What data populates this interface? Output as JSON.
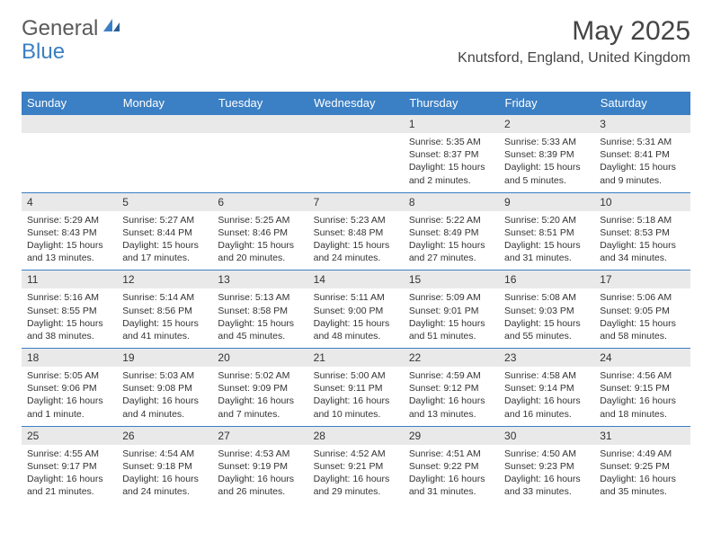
{
  "brand": {
    "part1": "General",
    "part2": "Blue"
  },
  "title": "May 2025",
  "location": "Knutsford, England, United Kingdom",
  "colors": {
    "header_bg": "#3b7fc4",
    "header_text": "#ffffff",
    "daynum_bg": "#e9e9e9",
    "border": "#3b7fc4",
    "text": "#333333"
  },
  "day_headers": [
    "Sunday",
    "Monday",
    "Tuesday",
    "Wednesday",
    "Thursday",
    "Friday",
    "Saturday"
  ],
  "weeks": [
    {
      "nums": [
        "",
        "",
        "",
        "",
        "1",
        "2",
        "3"
      ],
      "cells": [
        null,
        null,
        null,
        null,
        {
          "sunrise": "5:35 AM",
          "sunset": "8:37 PM",
          "daylight": "15 hours and 2 minutes."
        },
        {
          "sunrise": "5:33 AM",
          "sunset": "8:39 PM",
          "daylight": "15 hours and 5 minutes."
        },
        {
          "sunrise": "5:31 AM",
          "sunset": "8:41 PM",
          "daylight": "15 hours and 9 minutes."
        }
      ]
    },
    {
      "nums": [
        "4",
        "5",
        "6",
        "7",
        "8",
        "9",
        "10"
      ],
      "cells": [
        {
          "sunrise": "5:29 AM",
          "sunset": "8:43 PM",
          "daylight": "15 hours and 13 minutes."
        },
        {
          "sunrise": "5:27 AM",
          "sunset": "8:44 PM",
          "daylight": "15 hours and 17 minutes."
        },
        {
          "sunrise": "5:25 AM",
          "sunset": "8:46 PM",
          "daylight": "15 hours and 20 minutes."
        },
        {
          "sunrise": "5:23 AM",
          "sunset": "8:48 PM",
          "daylight": "15 hours and 24 minutes."
        },
        {
          "sunrise": "5:22 AM",
          "sunset": "8:49 PM",
          "daylight": "15 hours and 27 minutes."
        },
        {
          "sunrise": "5:20 AM",
          "sunset": "8:51 PM",
          "daylight": "15 hours and 31 minutes."
        },
        {
          "sunrise": "5:18 AM",
          "sunset": "8:53 PM",
          "daylight": "15 hours and 34 minutes."
        }
      ]
    },
    {
      "nums": [
        "11",
        "12",
        "13",
        "14",
        "15",
        "16",
        "17"
      ],
      "cells": [
        {
          "sunrise": "5:16 AM",
          "sunset": "8:55 PM",
          "daylight": "15 hours and 38 minutes."
        },
        {
          "sunrise": "5:14 AM",
          "sunset": "8:56 PM",
          "daylight": "15 hours and 41 minutes."
        },
        {
          "sunrise": "5:13 AM",
          "sunset": "8:58 PM",
          "daylight": "15 hours and 45 minutes."
        },
        {
          "sunrise": "5:11 AM",
          "sunset": "9:00 PM",
          "daylight": "15 hours and 48 minutes."
        },
        {
          "sunrise": "5:09 AM",
          "sunset": "9:01 PM",
          "daylight": "15 hours and 51 minutes."
        },
        {
          "sunrise": "5:08 AM",
          "sunset": "9:03 PM",
          "daylight": "15 hours and 55 minutes."
        },
        {
          "sunrise": "5:06 AM",
          "sunset": "9:05 PM",
          "daylight": "15 hours and 58 minutes."
        }
      ]
    },
    {
      "nums": [
        "18",
        "19",
        "20",
        "21",
        "22",
        "23",
        "24"
      ],
      "cells": [
        {
          "sunrise": "5:05 AM",
          "sunset": "9:06 PM",
          "daylight": "16 hours and 1 minute."
        },
        {
          "sunrise": "5:03 AM",
          "sunset": "9:08 PM",
          "daylight": "16 hours and 4 minutes."
        },
        {
          "sunrise": "5:02 AM",
          "sunset": "9:09 PM",
          "daylight": "16 hours and 7 minutes."
        },
        {
          "sunrise": "5:00 AM",
          "sunset": "9:11 PM",
          "daylight": "16 hours and 10 minutes."
        },
        {
          "sunrise": "4:59 AM",
          "sunset": "9:12 PM",
          "daylight": "16 hours and 13 minutes."
        },
        {
          "sunrise": "4:58 AM",
          "sunset": "9:14 PM",
          "daylight": "16 hours and 16 minutes."
        },
        {
          "sunrise": "4:56 AM",
          "sunset": "9:15 PM",
          "daylight": "16 hours and 18 minutes."
        }
      ]
    },
    {
      "nums": [
        "25",
        "26",
        "27",
        "28",
        "29",
        "30",
        "31"
      ],
      "cells": [
        {
          "sunrise": "4:55 AM",
          "sunset": "9:17 PM",
          "daylight": "16 hours and 21 minutes."
        },
        {
          "sunrise": "4:54 AM",
          "sunset": "9:18 PM",
          "daylight": "16 hours and 24 minutes."
        },
        {
          "sunrise": "4:53 AM",
          "sunset": "9:19 PM",
          "daylight": "16 hours and 26 minutes."
        },
        {
          "sunrise": "4:52 AM",
          "sunset": "9:21 PM",
          "daylight": "16 hours and 29 minutes."
        },
        {
          "sunrise": "4:51 AM",
          "sunset": "9:22 PM",
          "daylight": "16 hours and 31 minutes."
        },
        {
          "sunrise": "4:50 AM",
          "sunset": "9:23 PM",
          "daylight": "16 hours and 33 minutes."
        },
        {
          "sunrise": "4:49 AM",
          "sunset": "9:25 PM",
          "daylight": "16 hours and 35 minutes."
        }
      ]
    }
  ],
  "labels": {
    "sunrise": "Sunrise: ",
    "sunset": "Sunset: ",
    "daylight": "Daylight: "
  }
}
